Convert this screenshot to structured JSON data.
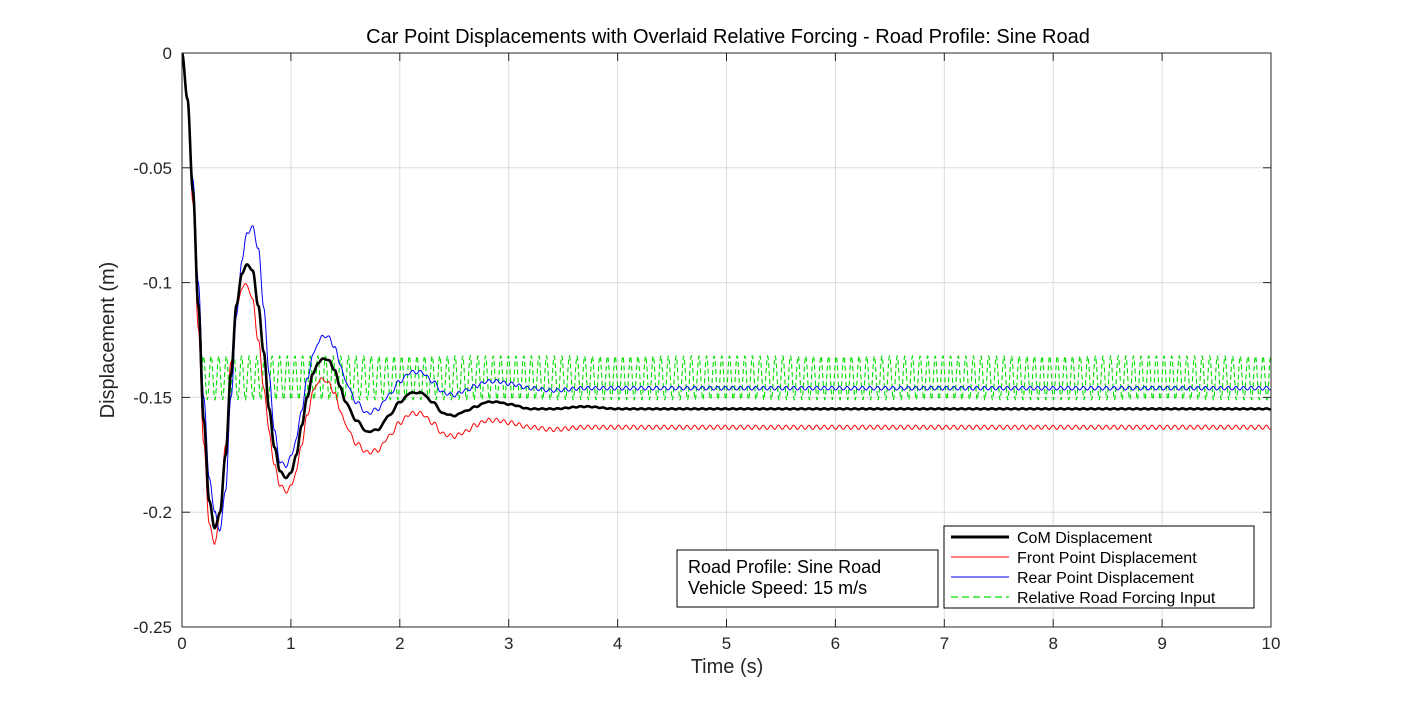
{
  "chart_data": {
    "type": "line",
    "title": "Car Point Displacements with Overlaid Relative Forcing - Road Profile: Sine Road",
    "xlabel": "Time (s)",
    "ylabel": "Displacement (m)",
    "xlim": [
      0,
      10
    ],
    "ylim": [
      -0.25,
      0
    ],
    "xticks": [
      0,
      1,
      2,
      3,
      4,
      5,
      6,
      7,
      8,
      9,
      10
    ],
    "yticks": [
      0,
      -0.05,
      -0.1,
      -0.15,
      -0.2,
      -0.25
    ],
    "xtick_labels": [
      "0",
      "1",
      "2",
      "3",
      "4",
      "5",
      "6",
      "7",
      "8",
      "9",
      "10"
    ],
    "ytick_labels": [
      "0",
      "-0.05",
      "-0.1",
      "-0.15",
      "-0.2",
      "-0.25"
    ],
    "grid": true,
    "legend_position": "bottom-right",
    "series": [
      {
        "name": "CoM Displacement",
        "color": "#000000",
        "style": "solid-thick",
        "x": [
          0,
          0.05,
          0.1,
          0.15,
          0.2,
          0.25,
          0.3,
          0.35,
          0.4,
          0.45,
          0.5,
          0.55,
          0.6,
          0.65,
          0.7,
          0.75,
          0.8,
          0.85,
          0.9,
          0.95,
          1.0,
          1.05,
          1.1,
          1.15,
          1.2,
          1.25,
          1.3,
          1.35,
          1.4,
          1.45,
          1.5,
          1.6,
          1.7,
          1.8,
          1.9,
          2.0,
          2.1,
          2.2,
          2.3,
          2.4,
          2.5,
          2.6,
          2.7,
          2.8,
          2.9,
          3.0,
          3.2,
          3.4,
          3.7,
          4.0,
          4.5,
          5,
          6,
          7,
          8,
          9,
          10
        ],
        "y": [
          0,
          -0.02,
          -0.06,
          -0.11,
          -0.16,
          -0.195,
          -0.207,
          -0.2,
          -0.175,
          -0.14,
          -0.11,
          -0.096,
          -0.092,
          -0.095,
          -0.11,
          -0.13,
          -0.155,
          -0.172,
          -0.182,
          -0.185,
          -0.183,
          -0.175,
          -0.162,
          -0.15,
          -0.14,
          -0.135,
          -0.133,
          -0.134,
          -0.138,
          -0.145,
          -0.152,
          -0.16,
          -0.165,
          -0.164,
          -0.158,
          -0.152,
          -0.148,
          -0.148,
          -0.152,
          -0.157,
          -0.158,
          -0.156,
          -0.154,
          -0.152,
          -0.152,
          -0.153,
          -0.155,
          -0.155,
          -0.154,
          -0.155,
          -0.155,
          -0.155,
          -0.155,
          -0.155,
          -0.155,
          -0.155,
          -0.155
        ]
      },
      {
        "name": "Front Point Displacement",
        "color": "#ff0000",
        "style": "solid",
        "x": [
          0,
          0.05,
          0.1,
          0.15,
          0.2,
          0.25,
          0.3,
          0.35,
          0.4,
          0.45,
          0.5,
          0.55,
          0.6,
          0.65,
          0.7,
          0.75,
          0.8,
          0.85,
          0.9,
          0.95,
          1.0,
          1.05,
          1.1,
          1.15,
          1.2,
          1.25,
          1.3,
          1.35,
          1.4,
          1.45,
          1.5,
          1.6,
          1.7,
          1.8,
          1.9,
          2.0,
          2.1,
          2.2,
          2.3,
          2.4,
          2.5,
          2.6,
          2.7,
          2.8,
          2.9,
          3.0,
          3.2,
          3.4,
          3.7,
          4.0,
          4.5,
          5,
          6,
          7,
          8,
          9,
          10
        ],
        "y": [
          0,
          -0.02,
          -0.065,
          -0.12,
          -0.17,
          -0.205,
          -0.214,
          -0.2,
          -0.17,
          -0.135,
          -0.112,
          -0.102,
          -0.101,
          -0.108,
          -0.125,
          -0.145,
          -0.165,
          -0.18,
          -0.188,
          -0.191,
          -0.189,
          -0.182,
          -0.17,
          -0.158,
          -0.148,
          -0.143,
          -0.142,
          -0.144,
          -0.148,
          -0.155,
          -0.162,
          -0.17,
          -0.174,
          -0.173,
          -0.167,
          -0.161,
          -0.157,
          -0.157,
          -0.161,
          -0.166,
          -0.167,
          -0.165,
          -0.162,
          -0.16,
          -0.16,
          -0.161,
          -0.163,
          -0.164,
          -0.163,
          -0.163,
          -0.163,
          -0.163,
          -0.163,
          -0.163,
          -0.163,
          -0.163,
          -0.163
        ]
      },
      {
        "name": "Rear Point Displacement",
        "color": "#0000ff",
        "style": "solid",
        "x": [
          0,
          0.05,
          0.1,
          0.15,
          0.2,
          0.25,
          0.3,
          0.35,
          0.4,
          0.45,
          0.5,
          0.55,
          0.6,
          0.65,
          0.7,
          0.75,
          0.8,
          0.85,
          0.9,
          0.95,
          1.0,
          1.05,
          1.1,
          1.15,
          1.2,
          1.25,
          1.3,
          1.35,
          1.4,
          1.45,
          1.5,
          1.6,
          1.7,
          1.8,
          1.9,
          2.0,
          2.1,
          2.2,
          2.3,
          2.4,
          2.5,
          2.6,
          2.7,
          2.8,
          2.9,
          3.0,
          3.2,
          3.4,
          3.7,
          4.0,
          4.5,
          5,
          6,
          7,
          8,
          9,
          10
        ],
        "y": [
          0,
          -0.02,
          -0.055,
          -0.1,
          -0.15,
          -0.185,
          -0.2,
          -0.208,
          -0.19,
          -0.15,
          -0.115,
          -0.09,
          -0.078,
          -0.076,
          -0.085,
          -0.11,
          -0.14,
          -0.165,
          -0.178,
          -0.18,
          -0.176,
          -0.168,
          -0.155,
          -0.142,
          -0.132,
          -0.126,
          -0.123,
          -0.124,
          -0.128,
          -0.135,
          -0.143,
          -0.152,
          -0.157,
          -0.155,
          -0.149,
          -0.143,
          -0.139,
          -0.139,
          -0.143,
          -0.148,
          -0.149,
          -0.147,
          -0.145,
          -0.143,
          -0.143,
          -0.144,
          -0.146,
          -0.147,
          -0.146,
          -0.146,
          -0.146,
          -0.146,
          -0.146,
          -0.146,
          -0.146,
          -0.146,
          -0.146
        ]
      },
      {
        "name": "Relative Road Forcing Input",
        "color": "#00dd00",
        "style": "dashed",
        "center": -0.1415,
        "amplitude": 0.0095,
        "period": 0.07,
        "x_range": [
          0.18,
          10
        ]
      }
    ]
  },
  "annotation": {
    "line1": "Road Profile: Sine Road",
    "line2": "Vehicle Speed: 15 m/s"
  },
  "legend": {
    "items": [
      "CoM Displacement",
      "Front Point Displacement",
      "Rear Point Displacement",
      "Relative Road Forcing Input"
    ]
  }
}
